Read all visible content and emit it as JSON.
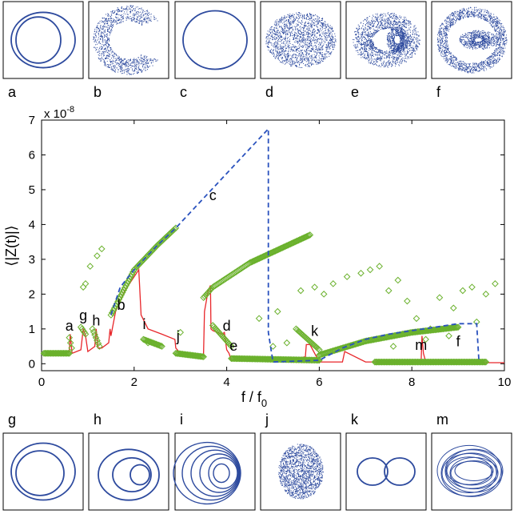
{
  "chart_data": {
    "type": "line",
    "xlabel": "f / f",
    "xlabel_sub": "0",
    "ylabel": "⟨|Z(t)|⟩",
    "exponent_label": "x 10",
    "exponent_power": "-8",
    "xlim": [
      0,
      10
    ],
    "ylim": [
      -0.2,
      7
    ],
    "x_ticks": [
      "0",
      "2",
      "4",
      "6",
      "8",
      "10"
    ],
    "y_ticks": [
      "0",
      "1",
      "2",
      "3",
      "4",
      "5",
      "6",
      "7"
    ],
    "grid": false,
    "colors": {
      "solid": "#e8262a",
      "dashed": "#2a52be",
      "markers": "#6ab12c",
      "orbit": "#2d4a9e"
    },
    "series": [
      {
        "style": "solid",
        "x": [
          0.1,
          0.55,
          0.6,
          0.62,
          0.66,
          0.85,
          0.9,
          0.95,
          1.0,
          1.15,
          1.18,
          1.22,
          1.3,
          1.45,
          1.48,
          1.5,
          1.6,
          1.7,
          1.8,
          2.0,
          2.1,
          2.15,
          2.3,
          2.6,
          2.88,
          2.9,
          3.0,
          3.2,
          3.5,
          3.52,
          3.6,
          3.65,
          3.66,
          3.7,
          3.9,
          3.95,
          4.0,
          4.05,
          4.1,
          4.5,
          4.9,
          5.0,
          5.5,
          5.7,
          5.72,
          5.8,
          5.9,
          6.0,
          6.5,
          6.55,
          7.0,
          8.0,
          8.2,
          8.22,
          8.25,
          8.3,
          8.5,
          9.0,
          9.5,
          10.0
        ],
        "y": [
          0.3,
          0.32,
          0.35,
          0.85,
          0.3,
          0.4,
          1.0,
          0.8,
          0.35,
          0.5,
          1.0,
          0.45,
          0.45,
          0.6,
          1.0,
          0.8,
          1.5,
          1.8,
          2.1,
          2.5,
          2.7,
          1.4,
          1.0,
          0.85,
          0.7,
          0.45,
          0.3,
          0.25,
          0.25,
          1.5,
          2.1,
          2.25,
          1.0,
          0.95,
          0.85,
          0.9,
          0.4,
          0.3,
          0.1,
          0.1,
          0.1,
          0.1,
          0.15,
          0.2,
          0.55,
          0.55,
          0.3,
          0.05,
          0.05,
          0.35,
          0.05,
          0.05,
          0.05,
          0.8,
          0.3,
          0.05,
          0.03,
          0.03,
          0.03,
          0.03
        ]
      },
      {
        "style": "dashed",
        "x": [
          1.5,
          1.7,
          2.0,
          2.5,
          2.9,
          4.9,
          4.9,
          5.0,
          5.0,
          6.0,
          6.5,
          7.0,
          7.5,
          8.0,
          8.5,
          9.0,
          9.4,
          9.45
        ],
        "y": [
          1.4,
          2.2,
          2.7,
          3.4,
          3.9,
          6.75,
          0.9,
          0.05,
          0.05,
          0.1,
          0.45,
          0.7,
          0.85,
          0.95,
          1.05,
          1.15,
          1.15,
          0.05
        ]
      }
    ],
    "marker_series": {
      "style": "diamond",
      "branches": [
        {
          "x": [
            0.05,
            0.6
          ],
          "y": [
            0.3,
            0.3
          ]
        },
        {
          "x": [
            0.6,
            0.65
          ],
          "y": [
            0.75,
            0.45
          ]
        },
        {
          "x": [
            0.85,
            0.95
          ],
          "y": [
            1.05,
            0.85
          ]
        },
        {
          "x": [
            1.1,
            1.25
          ],
          "y": [
            1.0,
            0.5
          ]
        },
        {
          "x": [
            1.5,
            2.0,
            2.5,
            2.9
          ],
          "y": [
            1.4,
            2.7,
            3.4,
            3.9
          ]
        },
        {
          "x": [
            2.2,
            2.6
          ],
          "y": [
            0.7,
            0.5
          ]
        },
        {
          "x": [
            2.9,
            3.5
          ],
          "y": [
            0.3,
            0.2
          ]
        },
        {
          "x": [
            3.5,
            3.7,
            4.5,
            5.8
          ],
          "y": [
            1.9,
            2.2,
            2.9,
            3.7
          ]
        },
        {
          "x": [
            3.7,
            4.1
          ],
          "y": [
            1.1,
            0.5
          ]
        },
        {
          "x": [
            4.1,
            6.0
          ],
          "y": [
            0.15,
            0.1
          ]
        },
        {
          "x": [
            5.5,
            6.0
          ],
          "y": [
            1.0,
            0.4
          ]
        },
        {
          "x": [
            6.0,
            7.0,
            8.0,
            9.0
          ],
          "y": [
            0.25,
            0.65,
            0.9,
            1.05
          ]
        },
        {
          "x": [
            7.2,
            9.6
          ],
          "y": [
            0.05,
            0.05
          ]
        }
      ],
      "scatter": [
        {
          "x": 0.95,
          "y": 2.3
        },
        {
          "x": 1.05,
          "y": 2.8
        },
        {
          "x": 1.2,
          "y": 3.1
        },
        {
          "x": 1.3,
          "y": 3.3
        },
        {
          "x": 0.9,
          "y": 2.2
        },
        {
          "x": 2.3,
          "y": 0.6
        },
        {
          "x": 3.0,
          "y": 0.9
        },
        {
          "x": 4.7,
          "y": 1.3
        },
        {
          "x": 5.0,
          "y": 0.5
        },
        {
          "x": 5.1,
          "y": 1.5
        },
        {
          "x": 5.3,
          "y": 0.6
        },
        {
          "x": 5.6,
          "y": 2.1
        },
        {
          "x": 5.9,
          "y": 2.2
        },
        {
          "x": 6.1,
          "y": 2.0
        },
        {
          "x": 6.3,
          "y": 2.3
        },
        {
          "x": 6.6,
          "y": 2.5
        },
        {
          "x": 6.9,
          "y": 2.6
        },
        {
          "x": 7.1,
          "y": 2.7
        },
        {
          "x": 7.3,
          "y": 2.8
        },
        {
          "x": 7.5,
          "y": 2.1
        },
        {
          "x": 7.7,
          "y": 2.4
        },
        {
          "x": 7.9,
          "y": 1.8
        },
        {
          "x": 8.1,
          "y": 1.3
        },
        {
          "x": 8.3,
          "y": 0.7
        },
        {
          "x": 8.6,
          "y": 1.9
        },
        {
          "x": 8.9,
          "y": 1.6
        },
        {
          "x": 9.1,
          "y": 2.1
        },
        {
          "x": 9.3,
          "y": 2.2
        },
        {
          "x": 9.6,
          "y": 2.0
        },
        {
          "x": 9.8,
          "y": 2.3
        },
        {
          "x": 7.6,
          "y": 0.5
        },
        {
          "x": 8.4,
          "y": 1.0
        },
        {
          "x": 8.8,
          "y": 0.8
        },
        {
          "x": 9.4,
          "y": 1.2
        }
      ]
    },
    "annotations": [
      {
        "text": "a",
        "x": 0.6,
        "y": 0.95
      },
      {
        "text": "g",
        "x": 0.9,
        "y": 1.25
      },
      {
        "text": "h",
        "x": 1.18,
        "y": 1.1
      },
      {
        "text": "b",
        "x": 1.72,
        "y": 1.55
      },
      {
        "text": "i",
        "x": 2.22,
        "y": 1.0
      },
      {
        "text": "j",
        "x": 2.95,
        "y": 0.65
      },
      {
        "text": "c",
        "x": 3.7,
        "y": 4.7
      },
      {
        "text": "d",
        "x": 4.0,
        "y": 0.95
      },
      {
        "text": "e",
        "x": 4.15,
        "y": 0.38
      },
      {
        "text": "k",
        "x": 5.9,
        "y": 0.8
      },
      {
        "text": "m",
        "x": 8.2,
        "y": 0.4
      },
      {
        "text": "f",
        "x": 9.0,
        "y": 0.5
      }
    ]
  },
  "insets_top": [
    {
      "label": "a",
      "kind": "double-loop"
    },
    {
      "label": "b",
      "kind": "scatter-wings"
    },
    {
      "label": "c",
      "kind": "ellipse"
    },
    {
      "label": "d",
      "kind": "scatter-torus"
    },
    {
      "label": "e",
      "kind": "scatter-shell"
    },
    {
      "label": "f",
      "kind": "scatter-ring"
    }
  ],
  "insets_bottom": [
    {
      "label": "g",
      "kind": "double-loop-offset"
    },
    {
      "label": "h",
      "kind": "nested-loops"
    },
    {
      "label": "i",
      "kind": "multi-loop"
    },
    {
      "label": "j",
      "kind": "scatter-blob"
    },
    {
      "label": "k",
      "kind": "figure-eight"
    },
    {
      "label": "m",
      "kind": "tangle"
    }
  ]
}
